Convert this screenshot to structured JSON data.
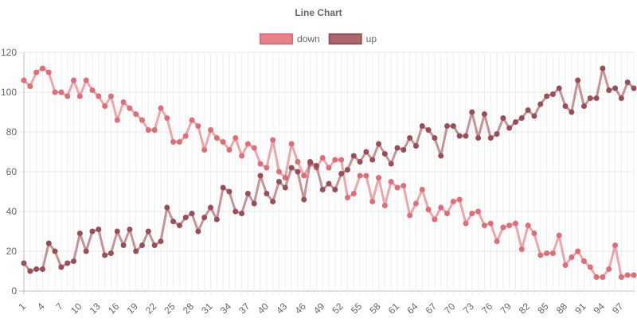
{
  "chart_data": {
    "type": "line",
    "title": "Line Chart",
    "xlabel": "",
    "ylabel": "",
    "x": [
      1,
      2,
      3,
      4,
      5,
      6,
      7,
      8,
      9,
      10,
      11,
      12,
      13,
      14,
      15,
      16,
      17,
      18,
      19,
      20,
      21,
      22,
      23,
      24,
      25,
      26,
      27,
      28,
      29,
      30,
      31,
      32,
      33,
      34,
      35,
      36,
      37,
      38,
      39,
      40,
      41,
      42,
      43,
      44,
      45,
      46,
      47,
      48,
      49,
      50,
      51,
      52,
      53,
      54,
      55,
      56,
      57,
      58,
      59,
      60,
      61,
      62,
      63,
      64,
      65,
      66,
      67,
      68,
      69,
      70,
      71,
      72,
      73,
      74,
      75,
      76,
      77,
      78,
      79,
      80,
      81,
      82,
      83,
      84,
      85,
      86,
      87,
      88,
      89,
      90,
      91,
      92,
      93,
      94,
      95,
      96,
      97,
      98,
      99
    ],
    "xtick_labels": [
      "1",
      "4",
      "7",
      "10",
      "13",
      "16",
      "19",
      "22",
      "25",
      "28",
      "31",
      "34",
      "37",
      "40",
      "43",
      "46",
      "49",
      "52",
      "55",
      "58",
      "61",
      "64",
      "67",
      "70",
      "73",
      "76",
      "79",
      "82",
      "85",
      "88",
      "91",
      "94",
      "97"
    ],
    "ylim": [
      0,
      120
    ],
    "yticks": [
      0,
      20,
      40,
      60,
      80,
      100,
      120
    ],
    "grid": true,
    "legend_position": "top",
    "series": [
      {
        "name": "down",
        "color": "#e06c75",
        "values": [
          106,
          103,
          110,
          112,
          110,
          100,
          100,
          98,
          106,
          98,
          106,
          101,
          98,
          93,
          98,
          86,
          95,
          92,
          89,
          86,
          81,
          81,
          92,
          87,
          75,
          75,
          78,
          86,
          83,
          71,
          81,
          77,
          75,
          71,
          77,
          68,
          74,
          72,
          64,
          62,
          76,
          60,
          57,
          74,
          65,
          58,
          64,
          62,
          67,
          62,
          66,
          66,
          47,
          49,
          58,
          58,
          45,
          57,
          43,
          55,
          52,
          53,
          38,
          44,
          51,
          41,
          36,
          42,
          39,
          45,
          46,
          34,
          39,
          40,
          33,
          34,
          25,
          32,
          33,
          34,
          21,
          33,
          29,
          18,
          19,
          19,
          28,
          13,
          17,
          20,
          15,
          12,
          7,
          7,
          11,
          23,
          7,
          8,
          8
        ]
      },
      {
        "name": "up",
        "color": "#9b4d55",
        "values": [
          14,
          10,
          11,
          11,
          24,
          20,
          12,
          14,
          15,
          29,
          20,
          30,
          31,
          18,
          19,
          30,
          23,
          31,
          20,
          23,
          30,
          23,
          25,
          42,
          35,
          33,
          37,
          39,
          30,
          37,
          42,
          36,
          52,
          50,
          40,
          39,
          49,
          44,
          58,
          49,
          45,
          55,
          52,
          62,
          60,
          46,
          65,
          63,
          51,
          54,
          51,
          59,
          61,
          68,
          65,
          70,
          66,
          74,
          69,
          64,
          72,
          71,
          77,
          73,
          83,
          81,
          77,
          68,
          83,
          83,
          78,
          78,
          90,
          77,
          89,
          77,
          79,
          87,
          82,
          85,
          87,
          91,
          88,
          94,
          98,
          99,
          102,
          93,
          90,
          106,
          93,
          97,
          97,
          112,
          101,
          102,
          97,
          105,
          102
        ]
      }
    ]
  }
}
